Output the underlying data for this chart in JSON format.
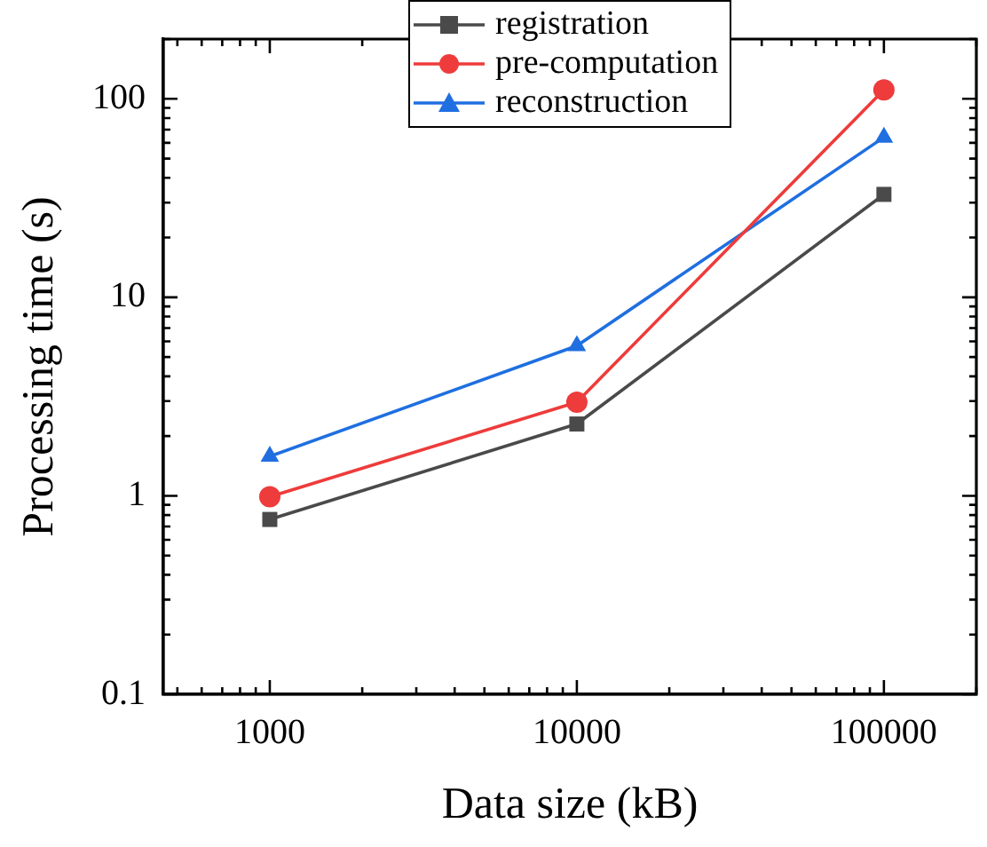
{
  "chart_data": {
    "type": "line",
    "xlabel": "Data size (kB)",
    "ylabel": "Processing time (s)",
    "x": [
      1000,
      10000,
      100000
    ],
    "log": "xy",
    "xlim": [
      450,
      200000
    ],
    "xticks": [
      1000,
      10000,
      100000
    ],
    "ylim": [
      0.1,
      200
    ],
    "yticks": [
      0.1,
      1,
      10,
      100
    ],
    "grid": false,
    "legend": "top",
    "line_style": "solid",
    "series": [
      {
        "name": "registration",
        "color": "#4a4a4a",
        "marker": "square",
        "values": [
          0.76,
          2.3,
          33
        ]
      },
      {
        "name": "pre-computation",
        "color": "#ee3b3b",
        "marker": "circle",
        "values": [
          0.99,
          2.96,
          111
        ]
      },
      {
        "name": "reconstruction",
        "color": "#1f6fe0",
        "marker": "triangle",
        "values": [
          1.58,
          5.7,
          64
        ]
      }
    ]
  }
}
